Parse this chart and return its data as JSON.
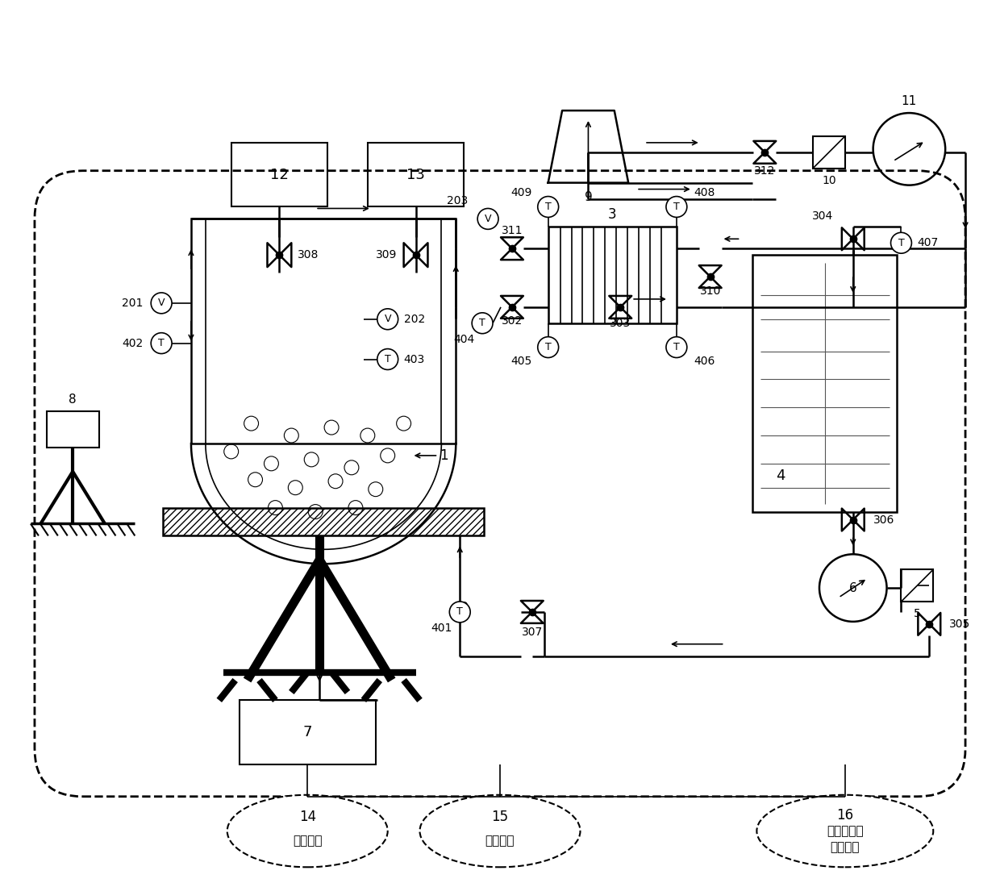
{
  "fig_width": 12.4,
  "fig_height": 10.95,
  "bg_color": "#ffffff",
  "chinese_labels": {
    "14": "14\n配电设备",
    "15": "15\n仪控设备",
    "16": "16\n数据测量与\n采集设备"
  }
}
